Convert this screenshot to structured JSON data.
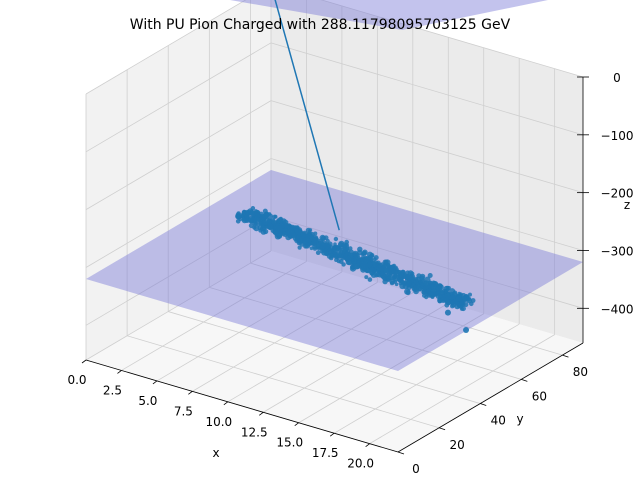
{
  "chart_data": {
    "type": "scatter",
    "projection": "3d",
    "title": "With PU Pion Charged with 288.11798095703125 GeV",
    "xlabel": "x",
    "ylabel": "y",
    "zlabel": "z",
    "xlim": [
      0,
      22
    ],
    "ylim": [
      0,
      90
    ],
    "zlim": [
      -460,
      0
    ],
    "x_ticks": [
      "0.0",
      "2.5",
      "5.0",
      "7.5",
      "10.0",
      "12.5",
      "15.0",
      "17.5",
      "20.0"
    ],
    "y_ticks": [
      "0",
      "20",
      "40",
      "60",
      "80"
    ],
    "z_ticks": [
      "0",
      "−100",
      "−200",
      "−300",
      "−400"
    ],
    "grid": true,
    "colors": {
      "points": "#1f77b4",
      "line": "#1f77b4",
      "plane": "#7b7bd6",
      "pane_left": "#f2f2f2",
      "pane_back": "#ebebeb",
      "pane_floor": "#f7f7f7",
      "grid": "#cfcfcf"
    },
    "planes": [
      {
        "name": "lower plane",
        "z": -320
      },
      {
        "name": "upper plane",
        "z": 50
      }
    ],
    "line_series": {
      "points": [
        {
          "x": 0,
          "y": 90,
          "z": 0
        },
        {
          "x": 8,
          "y": 68,
          "z": -320
        }
      ]
    },
    "scatter_series": {
      "x_range": [
        2,
        20
      ],
      "y_center_range": [
        62,
        48
      ],
      "y_spread": 6,
      "z_mean": -320,
      "z_spread": 12,
      "point_count": 900,
      "outliers": [
        {
          "x": 21,
          "y": 40,
          "z": -340
        },
        {
          "x": 19,
          "y": 45,
          "z": -335
        }
      ]
    }
  }
}
